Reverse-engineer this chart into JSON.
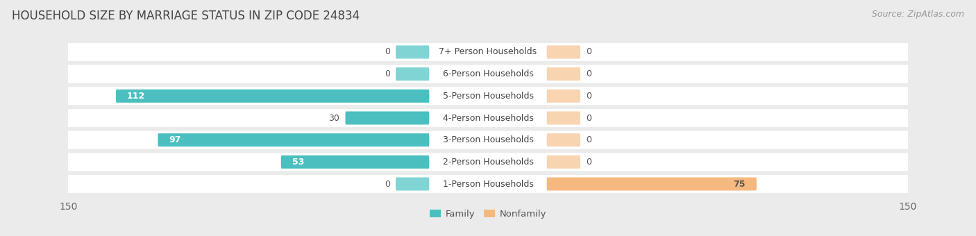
{
  "title": "HOUSEHOLD SIZE BY MARRIAGE STATUS IN ZIP CODE 24834",
  "source": "Source: ZipAtlas.com",
  "categories": [
    "7+ Person Households",
    "6-Person Households",
    "5-Person Households",
    "4-Person Households",
    "3-Person Households",
    "2-Person Households",
    "1-Person Households"
  ],
  "family_values": [
    0,
    0,
    112,
    30,
    97,
    53,
    0
  ],
  "nonfamily_values": [
    0,
    0,
    0,
    0,
    0,
    0,
    75
  ],
  "family_color": "#4bbfbf",
  "family_color_light": "#80d4d4",
  "nonfamily_color": "#f5b97f",
  "nonfamily_color_light": "#f8d4b0",
  "xlim": 150,
  "bg_color": "#ebebeb",
  "row_bg_color": "#ffffff",
  "title_fontsize": 12,
  "label_fontsize": 9,
  "tick_fontsize": 10,
  "source_fontsize": 9,
  "zero_stub": 12
}
